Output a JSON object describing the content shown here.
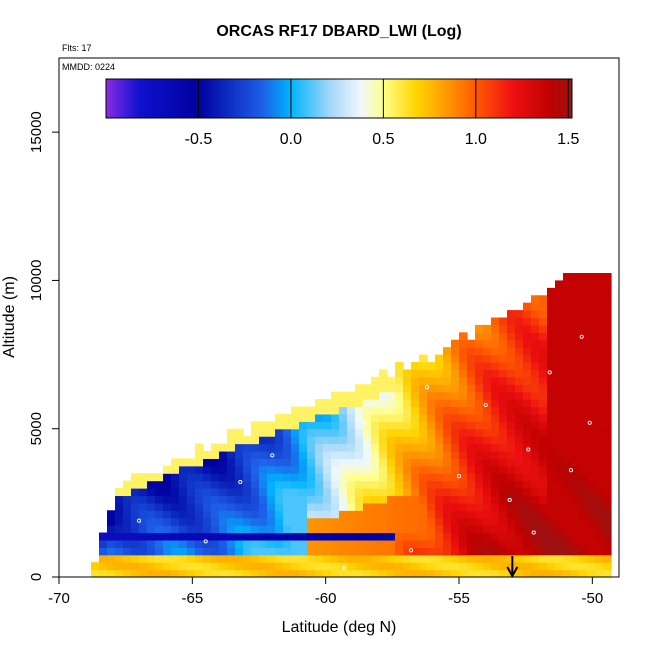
{
  "chart_data": {
    "type": "heatmap",
    "title": "ORCAS RF17 DBARD_LWI (Log)",
    "xlabel": "Latitude (deg N)",
    "ylabel": "Altitude (m)",
    "xlim": [
      -70,
      -49
    ],
    "ylim": [
      0,
      17500
    ],
    "x_ticks": [
      -70,
      -65,
      -60,
      -55,
      -50
    ],
    "x_tick_labels": [
      "-70",
      "-65",
      "-60",
      "-55",
      "-50"
    ],
    "y_ticks": [
      0,
      5000,
      10000,
      15000
    ],
    "y_tick_labels": [
      "0",
      "5000",
      "10000",
      "15000"
    ],
    "flights_note": "Flts: 17",
    "date_note": "MMDD: 0224",
    "colorbar": {
      "min": -1.0,
      "max": 1.52,
      "ticks": [
        -0.5,
        0.0,
        0.5,
        1.0,
        1.5
      ],
      "tick_labels": [
        "-0.5",
        "0.0",
        "0.5",
        "1.0",
        "1.5"
      ],
      "stops": [
        {
          "v": -1.0,
          "c": "#8a2be2"
        },
        {
          "v": -0.82,
          "c": "#1010d0"
        },
        {
          "v": -0.5,
          "c": "#0000a0"
        },
        {
          "v": -0.15,
          "c": "#1e60e8"
        },
        {
          "v": 0.0,
          "c": "#00b4ff"
        },
        {
          "v": 0.22,
          "c": "#a8d8f8"
        },
        {
          "v": 0.38,
          "c": "#f0f8ff"
        },
        {
          "v": 0.5,
          "c": "#ffff8c"
        },
        {
          "v": 0.68,
          "c": "#ffd400"
        },
        {
          "v": 0.85,
          "c": "#ff9600"
        },
        {
          "v": 1.0,
          "c": "#ff5a00"
        },
        {
          "v": 1.2,
          "c": "#ee1010"
        },
        {
          "v": 1.4,
          "c": "#c00000"
        },
        {
          "v": 1.52,
          "c": "#a01010"
        }
      ]
    },
    "field": {
      "lat_min": -68.8,
      "lat_max": -49.3,
      "lat_step": 0.3,
      "alt_step": 250,
      "coast_lat": -53,
      "top_ramp": [
        [
          -68.8,
          600
        ],
        [
          -68.0,
          2800
        ],
        [
          -66.5,
          3500
        ],
        [
          -64.0,
          4500
        ],
        [
          -60.0,
          6000
        ],
        [
          -56.0,
          7400
        ],
        [
          -53.0,
          9000
        ],
        [
          -51.0,
          10100
        ],
        [
          -49.6,
          10200
        ]
      ],
      "layers": [
        {
          "name": "surface band",
          "alt_range": [
            0,
            800
          ],
          "value": 0.72
        },
        {
          "name": "low negative layer",
          "alt_range": [
            1100,
            1500
          ],
          "lat_range": [
            -68,
            -58
          ],
          "value": -0.7
        },
        {
          "name": "cold-air region",
          "lat_range": [
            -68,
            -61
          ],
          "value": 0.05
        },
        {
          "name": "warm southern core",
          "lat_range": [
            -56,
            -49.3
          ],
          "value": 1.38
        }
      ]
    },
    "arrow": {
      "lat": -53,
      "direction": "down"
    }
  }
}
